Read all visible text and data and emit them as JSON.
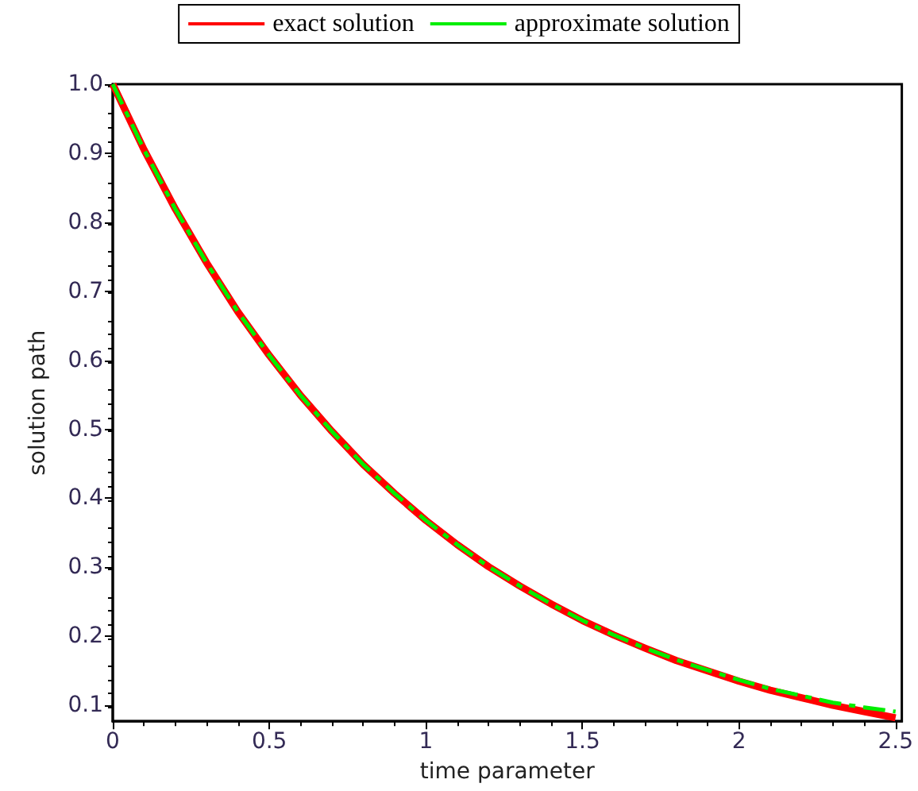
{
  "chart_data": {
    "type": "line",
    "xlabel": "time parameter",
    "ylabel": "solution path",
    "x": [
      0,
      0.1,
      0.2,
      0.3,
      0.4,
      0.5,
      0.6,
      0.7,
      0.8,
      0.9,
      1.0,
      1.1,
      1.2,
      1.3,
      1.4,
      1.5,
      1.6,
      1.7,
      1.8,
      1.9,
      2.0,
      2.1,
      2.2,
      2.3,
      2.4,
      2.5
    ],
    "series": [
      {
        "name": "exact solution",
        "color": "#ff0000",
        "line_style": "solid",
        "values": [
          1.0,
          0.905,
          0.819,
          0.741,
          0.67,
          0.607,
          0.549,
          0.497,
          0.449,
          0.407,
          0.368,
          0.333,
          0.301,
          0.273,
          0.247,
          0.223,
          0.202,
          0.183,
          0.165,
          0.15,
          0.135,
          0.122,
          0.111,
          0.1,
          0.091,
          0.082
        ]
      },
      {
        "name": "approximate solution",
        "color": "#00ee00",
        "line_style": "dashed",
        "values": [
          1.0,
          0.905,
          0.819,
          0.741,
          0.67,
          0.607,
          0.549,
          0.497,
          0.449,
          0.407,
          0.368,
          0.333,
          0.301,
          0.273,
          0.247,
          0.223,
          0.202,
          0.183,
          0.166,
          0.151,
          0.137,
          0.124,
          0.114,
          0.104,
          0.097,
          0.091
        ]
      }
    ],
    "xlim": [
      0,
      2.52
    ],
    "ylim": [
      0.077,
      1.0
    ],
    "xticks": [
      0,
      0.5,
      1,
      1.5,
      2,
      2.5
    ],
    "yticks": [
      {
        "value": 0.1,
        "label": "0.1"
      },
      {
        "value": 0.2,
        "label": "0.2"
      },
      {
        "value": 0.3,
        "label": "0.3"
      },
      {
        "value": 0.4,
        "label": "0.4"
      },
      {
        "value": 0.5,
        "label": "0.5"
      },
      {
        "value": 0.6,
        "label": "0.6"
      },
      {
        "value": 0.7,
        "label": "0.7"
      },
      {
        "value": 0.8,
        "label": "0.8"
      },
      {
        "value": 0.9,
        "label": "0.9"
      },
      {
        "value": 1.0,
        "label": "1.0"
      }
    ],
    "grid": false,
    "legend": "top",
    "marker": "none"
  }
}
